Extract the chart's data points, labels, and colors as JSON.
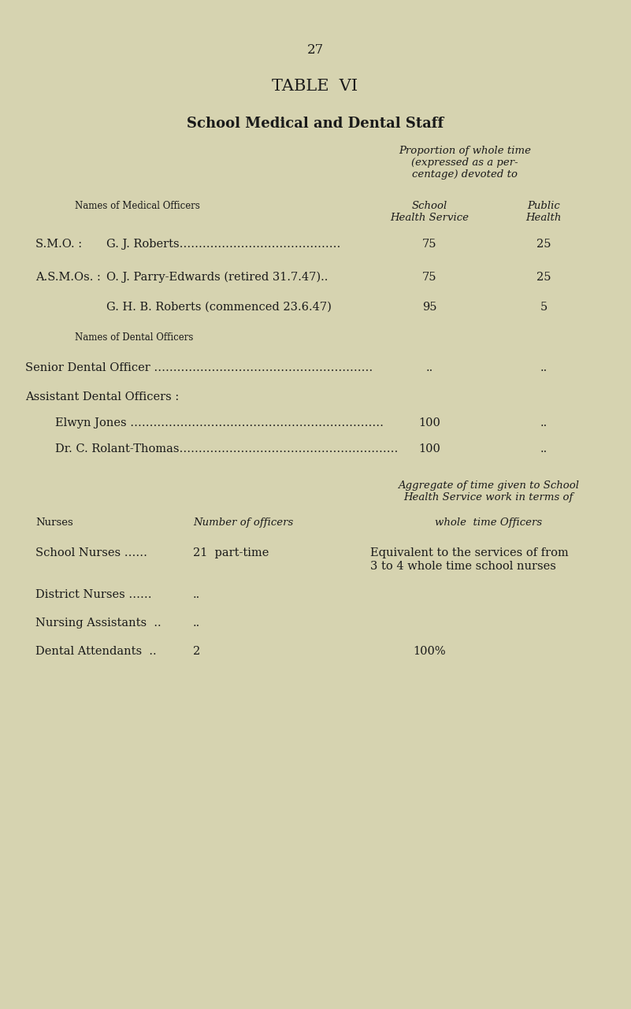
{
  "page_number": "27",
  "title": "TABLE  VI",
  "subtitle": "School Medical and Dental Staff",
  "bg_color": "#d6d3b0",
  "text_color": "#1a1a1a",
  "prop_header": "Proportion of whole time\n(expressed as a per-\ncentage) devoted to",
  "col_sub1": "School\nHealth Service",
  "col_sub2": "Public\nHealth",
  "names_med_header": "Names of Medical Officers",
  "names_dental_header": "Names of Dental Officers",
  "agg_header": "Aggregate of time given to School\nHealth Service work in terms of",
  "nurses_col1": "Nurses",
  "nurses_col2": "Number of officers",
  "nurses_col3": "whole  time Officers"
}
